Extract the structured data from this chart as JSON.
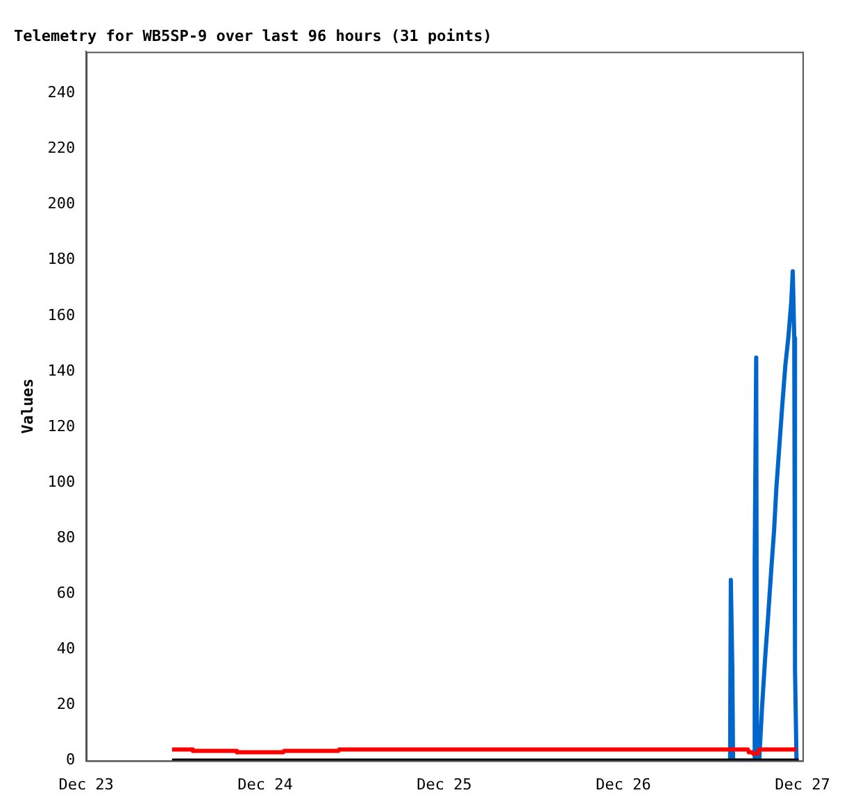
{
  "chart_data": {
    "type": "line",
    "title": "Telemetry for WB5SP-9 over last 96 hours (31 points)",
    "ylabel": "Values",
    "xlim": [
      "--12-23",
      "--12-27"
    ],
    "xticks": [
      {
        "value": "--12-23",
        "label": "Dec 23"
      },
      {
        "value": "--12-24",
        "label": "Dec 24"
      },
      {
        "value": "--12-25",
        "label": "Dec 25"
      },
      {
        "value": "--12-26",
        "label": "Dec 26"
      },
      {
        "value": "--12-27",
        "label": "Dec 27"
      }
    ],
    "ylim": [
      0,
      255
    ],
    "yticks": [
      0,
      20,
      40,
      60,
      80,
      100,
      120,
      140,
      160,
      180,
      200,
      220,
      240
    ],
    "grid": false,
    "legend": false,
    "marker": "none",
    "line_style": "solid",
    "series": [
      {
        "color": "#000000",
        "x": [
          "--12-23T11:30",
          "--12-26T23:30"
        ],
        "values": [
          0,
          0
        ]
      },
      {
        "color": "#ff0000",
        "x": [
          "--12-23T11:30",
          "--12-23T14:12",
          "--12-23T14:18",
          "--12-23T20:06",
          "--12-23T20:12",
          "--12-24T02:24",
          "--12-24T02:30",
          "--12-24T09:48",
          "--12-24T09:54",
          "--12-26T14:24",
          "--12-26T16:42",
          "--12-26T16:48",
          "--12-26T17:18",
          "--12-26T17:24",
          "--12-26T18:00",
          "--12-26T18:12",
          "--12-26T23:12"
        ],
        "values": [
          4,
          4,
          3.5,
          3.5,
          3,
          3,
          3.5,
          3.5,
          4,
          4,
          4,
          3,
          3,
          2.5,
          2.5,
          4,
          4
        ]
      },
      {
        "color": "#0066cc",
        "x": [
          "--12-26T14:18",
          "--12-26T14:24",
          "--12-26T14:36",
          "--12-26T14:42",
          "--12-26T17:30",
          "--12-26T17:36",
          "--12-26T17:48",
          "--12-26T17:54",
          "--12-26T18:12",
          "--12-26T18:36",
          "--12-26T19:00",
          "--12-26T19:24",
          "--12-26T19:48",
          "--12-26T20:12",
          "--12-26T20:30",
          "--12-26T20:54",
          "--12-26T21:18",
          "--12-26T21:42",
          "--12-26T22:06",
          "--12-26T22:30",
          "--12-26T22:42",
          "--12-26T22:54",
          "--12-26T23:00",
          "--12-26T23:12"
        ],
        "values": [
          0,
          65,
          33,
          0,
          0,
          72,
          145,
          0,
          0,
          20,
          37,
          52,
          68,
          83,
          98,
          113,
          128,
          142,
          152,
          165,
          176,
          152,
          33,
          0
        ]
      }
    ]
  }
}
